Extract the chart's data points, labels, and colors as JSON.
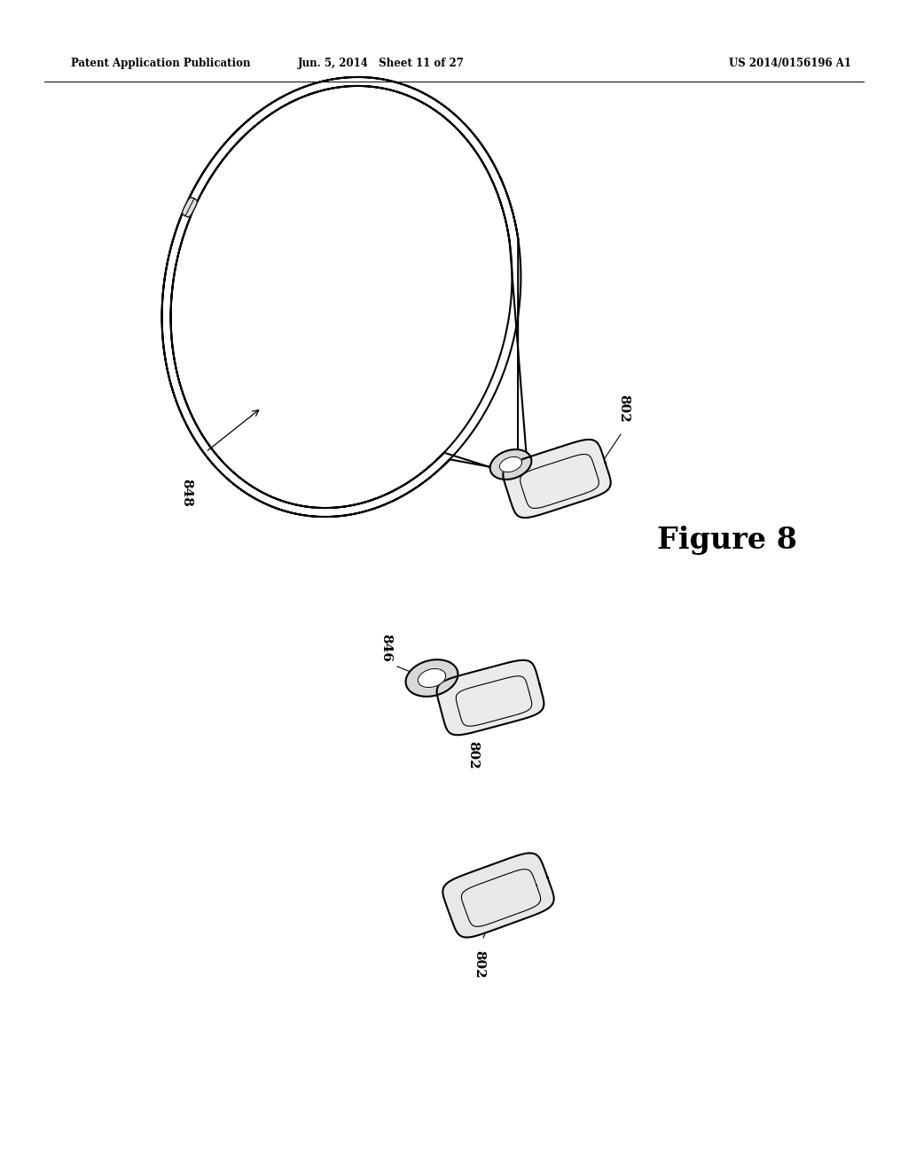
{
  "bg_color": "#ffffff",
  "header_left": "Patent Application Publication",
  "header_mid": "Jun. 5, 2014   Sheet 11 of 27",
  "header_right": "US 2014/0156196 A1",
  "figure_label": "Figure 8",
  "label_802_1": "802",
  "label_802_2": "802",
  "label_802_3": "802",
  "label_846": "846",
  "label_848": "848",
  "line_color": "#000000",
  "line_width": 1.5
}
